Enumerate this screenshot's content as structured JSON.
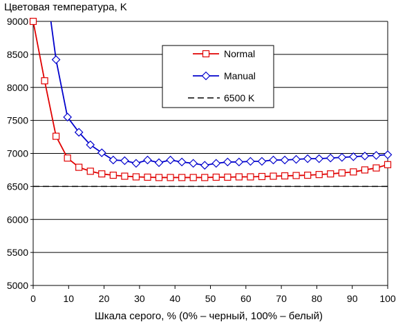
{
  "chart_data": {
    "type": "line",
    "title": "Цветовая температура, K",
    "xlabel": "Шкала серого, % (0% – черный, 100% – белый)",
    "ylabel": "",
    "xlim": [
      0,
      100
    ],
    "ylim": [
      5000,
      9000
    ],
    "x_ticks": [
      "0",
      "10",
      "20",
      "30",
      "40",
      "50",
      "60",
      "70",
      "80",
      "90",
      "100"
    ],
    "y_ticks": [
      "5000",
      "5500",
      "6000",
      "6500",
      "7000",
      "7500",
      "8000",
      "8500",
      "9000"
    ],
    "grid": "horizontal",
    "legend_position": "top-right",
    "series": [
      {
        "name": "Normal",
        "color": "#e00000",
        "marker": "square",
        "x": [
          0,
          3.23,
          6.45,
          9.68,
          12.9,
          16.13,
          19.35,
          22.58,
          25.81,
          29.03,
          32.26,
          35.48,
          38.71,
          41.94,
          45.16,
          48.39,
          51.61,
          54.84,
          58.06,
          61.29,
          64.52,
          67.74,
          70.97,
          74.19,
          77.42,
          80.65,
          83.87,
          87.1,
          90.32,
          93.55,
          96.77,
          100
        ],
        "y": [
          9000,
          8100,
          7260,
          6930,
          6790,
          6730,
          6690,
          6670,
          6655,
          6645,
          6640,
          6635,
          6635,
          6635,
          6635,
          6635,
          6640,
          6640,
          6645,
          6645,
          6650,
          6655,
          6660,
          6665,
          6670,
          6680,
          6690,
          6705,
          6720,
          6750,
          6780,
          6830
        ]
      },
      {
        "name": "Manual",
        "color": "#0000cc",
        "marker": "diamond",
        "x": [
          6.45,
          9.68,
          12.9,
          16.13,
          19.35,
          22.58,
          25.81,
          29.03,
          32.26,
          35.48,
          38.71,
          41.94,
          45.16,
          48.39,
          51.61,
          54.84,
          58.06,
          61.29,
          64.52,
          67.74,
          70.97,
          74.19,
          77.42,
          80.65,
          83.87,
          87.1,
          90.32,
          93.55,
          96.77,
          100
        ],
        "y": [
          8420,
          7550,
          7320,
          7130,
          7010,
          6900,
          6890,
          6850,
          6900,
          6860,
          6900,
          6870,
          6850,
          6820,
          6850,
          6870,
          6870,
          6880,
          6880,
          6900,
          6900,
          6910,
          6920,
          6920,
          6930,
          6940,
          6950,
          6960,
          6970,
          6980
        ],
        "lead_in_from_above_at_x": 5.0
      },
      {
        "name": "6500 K",
        "color": "#000000",
        "style": "dashed",
        "x": [
          0,
          100
        ],
        "y": [
          6500,
          6500
        ]
      }
    ]
  }
}
